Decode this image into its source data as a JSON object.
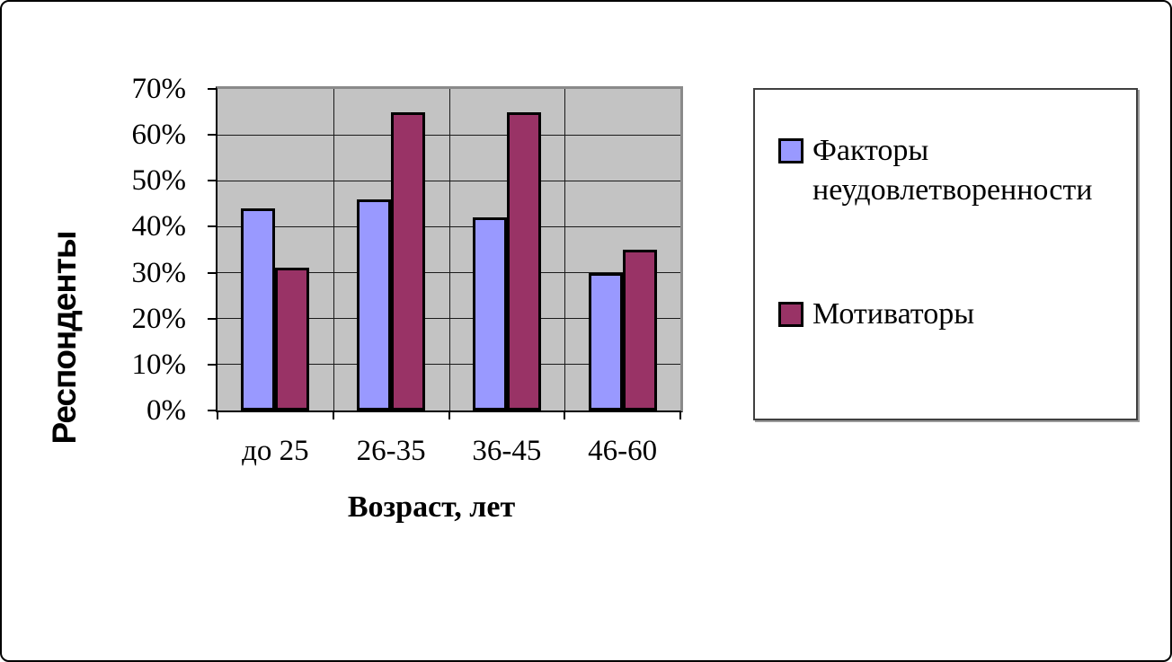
{
  "chart_data": {
    "type": "bar",
    "categories": [
      "до 25",
      "26-35",
      "36-45",
      "46-60"
    ],
    "series": [
      {
        "name": "Факторы неудовлетворенности",
        "color": "#9999FF",
        "values": [
          44,
          46,
          42,
          30
        ]
      },
      {
        "name": "Мотиваторы",
        "color": "#993366",
        "values": [
          31,
          65,
          65,
          35
        ]
      }
    ],
    "xlabel": "Возраст, лет",
    "ylabel": "Респонденты",
    "ylim": [
      0,
      70
    ],
    "ytick_step": 10,
    "ytick_labels": [
      "0%",
      "10%",
      "20%",
      "30%",
      "40%",
      "50%",
      "60%",
      "70%"
    ],
    "grid": "horizontal-and-category",
    "legend_position": "right",
    "plot_bg_color": "#C3C3C3",
    "bar_border_color": "#000000",
    "title": ""
  }
}
